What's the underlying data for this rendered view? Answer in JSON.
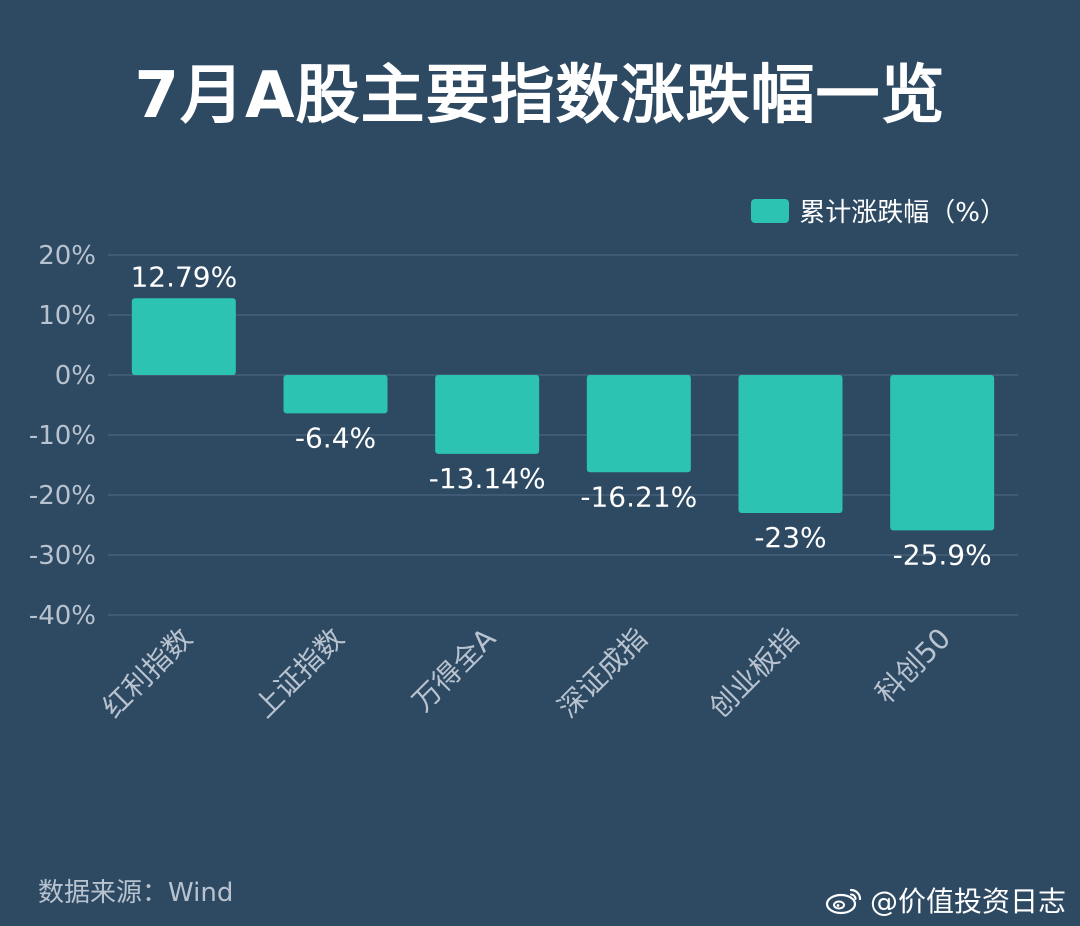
{
  "title": "7月A股主要指数涨跌幅一览",
  "legend_label": "累计涨跌幅（%）",
  "source": "数据来源：Wind",
  "watermark_text": "@价值投资日志",
  "colors": {
    "background": "#2e4a63",
    "bar": "#2cc3b3",
    "grid": "#4d657d",
    "axis_text": "#b8c3cf"
  },
  "chart_data": {
    "type": "bar",
    "categories": [
      "红利指数",
      "上证指数",
      "万得全A",
      "深证成指",
      "创业板指",
      "科创50"
    ],
    "series": [
      {
        "name": "累计涨跌幅（%）",
        "values": [
          12.79,
          -6.4,
          -13.14,
          -16.21,
          -23,
          -25.9
        ]
      }
    ],
    "data_labels": [
      "12.79%",
      "-6.4%",
      "-13.14%",
      "-16.21%",
      "-23%",
      "-25.9%"
    ],
    "y_ticks": [
      20,
      10,
      0,
      -10,
      -20,
      -30,
      -40
    ],
    "y_tick_labels": [
      "20%",
      "10%",
      "0%",
      "-10%",
      "-20%",
      "-30%",
      "-40%"
    ],
    "ylim": [
      -40,
      20
    ],
    "grid": true,
    "legend_position": "top-right"
  }
}
